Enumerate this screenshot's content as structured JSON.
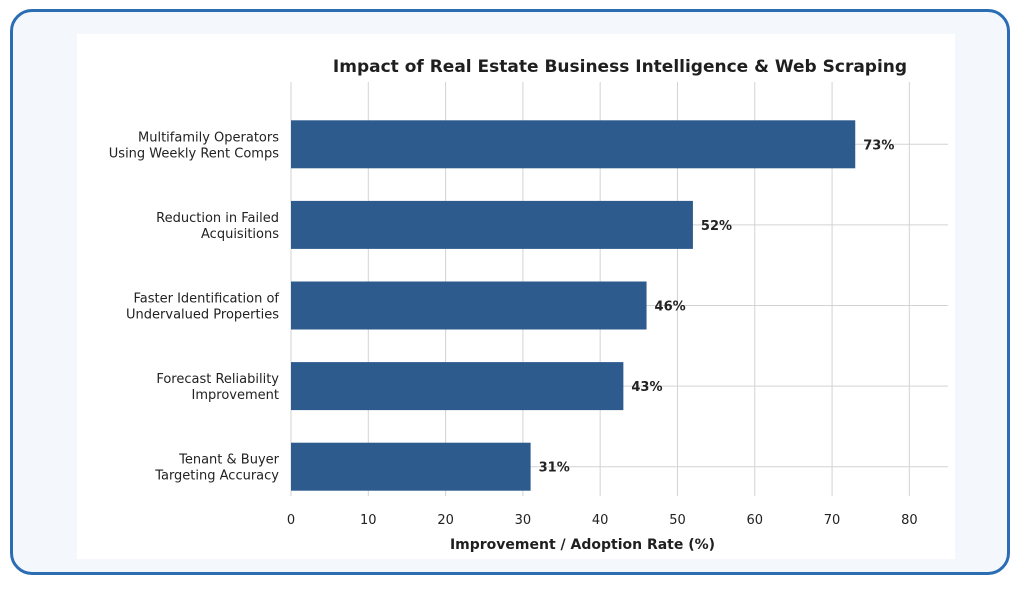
{
  "colors": {
    "frame_border": "#2a6db3",
    "frame_background": "#f4f7fc",
    "bar": "#2d5b8e",
    "grid": "#d3d3d3",
    "text": "#222222"
  },
  "chart_data": {
    "type": "bar",
    "orientation": "horizontal",
    "title": "Impact of Real Estate Business Intelligence & Web Scraping",
    "xlabel": "Improvement / Adoption Rate (%)",
    "ylabel": "",
    "categories": [
      [
        "Multifamily Operators",
        "Using Weekly Rent Comps"
      ],
      [
        "Reduction in Failed",
        "Acquisitions"
      ],
      [
        "Faster Identification of",
        "Undervalued Properties"
      ],
      [
        "Forecast Reliability",
        "Improvement"
      ],
      [
        "Tenant & Buyer",
        "Targeting Accuracy"
      ]
    ],
    "values": [
      73,
      52,
      46,
      43,
      31
    ],
    "value_labels": [
      "73%",
      "52%",
      "46%",
      "43%",
      "31%"
    ],
    "xlim": [
      0,
      85
    ],
    "xticks": [
      0,
      10,
      20,
      30,
      40,
      50,
      60,
      70,
      80
    ],
    "grid": true,
    "legend": "none"
  }
}
